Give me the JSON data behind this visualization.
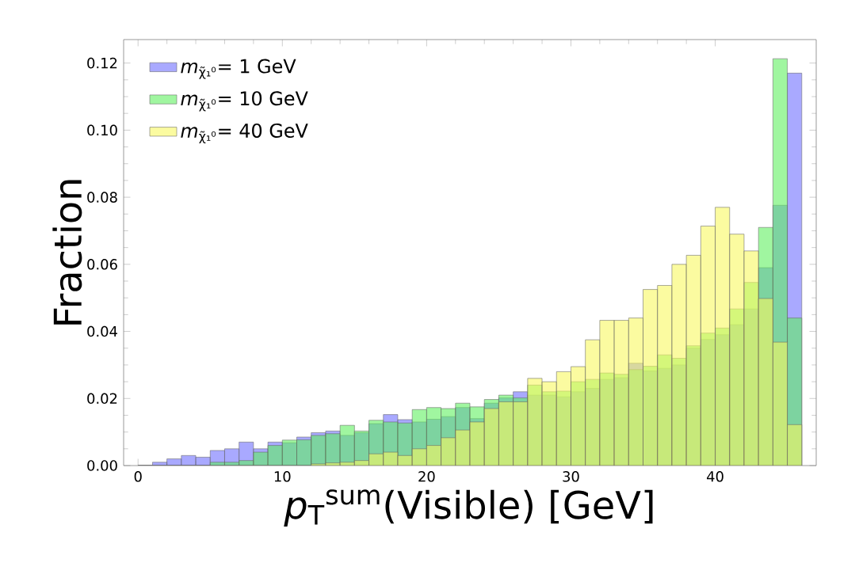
{
  "chart_data": {
    "type": "histogram",
    "xlabel": "*p*$_{T}$$^{sum}$(Visible) [GeV]",
    "ylabel": "Fraction",
    "bins": [
      0,
      1,
      2,
      3,
      4,
      5,
      6,
      7,
      8,
      9,
      10,
      11,
      12,
      13,
      14,
      15,
      16,
      17,
      18,
      19,
      20,
      21,
      22,
      23,
      24,
      25,
      26,
      27,
      28,
      29,
      30,
      31,
      32,
      33,
      34,
      35,
      36,
      37,
      38,
      39,
      40,
      41,
      42,
      43,
      44,
      45,
      46
    ],
    "series": [
      {
        "name": "*m*$_{χ̃₁⁰}$=   1 GeV",
        "color": "#7070ff",
        "values": [
          0,
          0.001,
          0.002,
          0.003,
          0.0025,
          0.0045,
          0.005,
          0.007,
          0.005,
          0.007,
          0.0068,
          0.0085,
          0.0098,
          0.0103,
          0.009,
          0.0098,
          0.0125,
          0.0152,
          0.0137,
          0.013,
          0.0138,
          0.0146,
          0.0173,
          0.014,
          0.0186,
          0.0202,
          0.022,
          0.021,
          0.021,
          0.0205,
          0.022,
          0.023,
          0.0257,
          0.0262,
          0.0305,
          0.0282,
          0.029,
          0.03,
          0.035,
          0.0376,
          0.039,
          0.042,
          0.0467,
          0.059,
          0.0776,
          0.117
        ]
      },
      {
        "name": "*m*$_{χ̃₁⁰}$= 10 GeV",
        "color": "#60f060",
        "values": [
          0,
          0,
          0,
          0,
          0,
          0.001,
          0.001,
          0.0015,
          0.004,
          0.006,
          0.0076,
          0.0077,
          0.009,
          0.0095,
          0.012,
          0.0103,
          0.0135,
          0.013,
          0.0127,
          0.0167,
          0.0173,
          0.017,
          0.0186,
          0.0175,
          0.0197,
          0.021,
          0.0202,
          0.024,
          0.022,
          0.0222,
          0.025,
          0.0257,
          0.0276,
          0.0272,
          0.0286,
          0.0296,
          0.033,
          0.032,
          0.0357,
          0.0395,
          0.041,
          0.0467,
          0.0546,
          0.071,
          0.1213,
          0.044
        ]
      },
      {
        "name": "*m*$_{χ̃₁⁰}$= 40 GeV",
        "color": "#f8f860",
        "values": [
          0,
          0,
          0,
          0,
          0,
          0,
          0,
          0,
          0,
          0,
          0,
          0,
          0.0005,
          0.0008,
          0.001,
          0.0015,
          0.0035,
          0.004,
          0.003,
          0.005,
          0.006,
          0.0083,
          0.0106,
          0.013,
          0.017,
          0.019,
          0.019,
          0.026,
          0.025,
          0.028,
          0.0295,
          0.0375,
          0.0433,
          0.0433,
          0.044,
          0.0525,
          0.0537,
          0.06,
          0.0627,
          0.0714,
          0.077,
          0.069,
          0.064,
          0.0498,
          0.0368,
          0.0122
        ]
      }
    ],
    "xlim": [
      -1.0,
      47.0
    ],
    "ylim": [
      0,
      0.127
    ],
    "xticks": [
      0,
      10,
      20,
      30,
      40
    ],
    "yticks": [
      {
        "value": 0,
        "label": "0.00"
      },
      {
        "value": 0.02,
        "label": "0.02"
      },
      {
        "value": 0.04,
        "label": "0.04"
      },
      {
        "value": 0.06,
        "label": "0.06"
      },
      {
        "value": 0.08,
        "label": "0.08"
      },
      {
        "value": 0.1,
        "label": "0.10"
      },
      {
        "value": 0.12,
        "label": "0.12"
      }
    ],
    "legend": "top left",
    "grid": false
  }
}
